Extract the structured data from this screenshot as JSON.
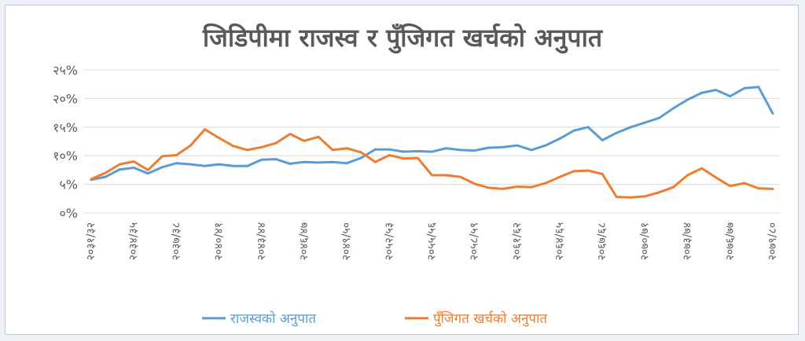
{
  "chart_data": {
    "type": "line",
    "title": "जिडिपीमा राजस्व र पुँजिगत खर्चको अनुपात",
    "xlabel": "",
    "ylabel": "",
    "ylim": [
      0,
      25
    ],
    "y_ticks": [
      {
        "value": 0,
        "label": "०%"
      },
      {
        "value": 5,
        "label": "५%"
      },
      {
        "value": 10,
        "label": "१०%"
      },
      {
        "value": 15,
        "label": "१५%"
      },
      {
        "value": 20,
        "label": "२०%"
      },
      {
        "value": 25,
        "label": "२५%"
      }
    ],
    "grid": true,
    "legend_position": "bottom",
    "categories": [
      "२०३१/३२",
      "२०३२/३३",
      "२०३३/३४",
      "२०३४/३५",
      "२०३५/३६",
      "२०३६/३७",
      "२०३७/३८",
      "२०३८/३९",
      "२०३९/४०",
      "२०४०/४१",
      "२०४१/४२",
      "२०४२/४३",
      "२०४३/४४",
      "२०४४/४५",
      "२०४५/४६",
      "२०४६/४७",
      "२०४७/४८",
      "२०४८/४९",
      "२०४९/५०",
      "२०५०/५१",
      "२०५१/५२",
      "२०५२/५३",
      "२०५३/५४",
      "२०५४/५५",
      "२०५५/५६",
      "२०५६/५७",
      "२०५७/५८",
      "२०५८/५९",
      "२०५९/६०",
      "२०६०/६१",
      "२०६१/६२",
      "२०६२/६३",
      "२०६३/६४",
      "२०६४/६५",
      "२०६५/६६",
      "२०६६/६७",
      "२०६७/६८",
      "२०६८/६९",
      "२०६९/७०",
      "२०७०/७१",
      "२०७१/७२",
      "२०७२/७३",
      "२०७३/७४",
      "२०७४/७५",
      "२०७५/७६",
      "२०७६/७७",
      "२०७७/७८",
      "२०७८/७९",
      "२०७९/८०"
    ],
    "tick_labels": [
      "२०३१/३२",
      "२०३४/३५",
      "२०३७/३८",
      "२०४०/४१",
      "२०४३/४४",
      "२०४६/४७",
      "२०४९/५०",
      "२०५२/५३",
      "२०५५/५६",
      "२०५८/५९",
      "२०६१/६२",
      "२०६४/६५",
      "२०६७/६८",
      "२०७०/७१",
      "२०७३/७४",
      "२०७६/७७",
      "२०७९/८०"
    ],
    "series": [
      {
        "name": "राजस्वको अनुपात",
        "color": "#5b9bd5",
        "values": [
          5.8,
          6.3,
          7.6,
          7.9,
          6.9,
          8.0,
          8.7,
          8.5,
          8.2,
          8.5,
          8.2,
          8.2,
          9.3,
          9.4,
          8.6,
          8.9,
          8.8,
          8.9,
          8.7,
          9.6,
          11.1,
          11.1,
          10.7,
          10.8,
          10.7,
          11.3,
          11.0,
          10.9,
          11.4,
          11.5,
          11.8,
          11.0,
          11.8,
          13.0,
          14.4,
          15.0,
          12.7,
          14.0,
          15.0,
          15.8,
          16.6,
          18.3,
          19.8,
          21.0,
          21.5,
          20.4,
          21.8,
          22.0,
          17.4
        ]
      },
      {
        "name": "पुँजिगत खर्चको अनुपात",
        "color": "#ed7d31",
        "values": [
          5.9,
          7.0,
          8.5,
          9.0,
          7.5,
          9.9,
          10.1,
          11.8,
          14.6,
          13.1,
          11.7,
          11.0,
          11.5,
          12.2,
          13.8,
          12.6,
          13.3,
          11.0,
          11.3,
          10.6,
          8.9,
          10.1,
          9.5,
          9.6,
          6.6,
          6.6,
          6.3,
          5.1,
          4.4,
          4.2,
          4.6,
          4.5,
          5.2,
          6.3,
          7.3,
          7.4,
          6.8,
          2.8,
          2.7,
          2.9,
          3.6,
          4.5,
          6.6,
          7.8,
          6.2,
          4.7,
          5.2,
          4.3,
          4.2
        ]
      }
    ]
  }
}
